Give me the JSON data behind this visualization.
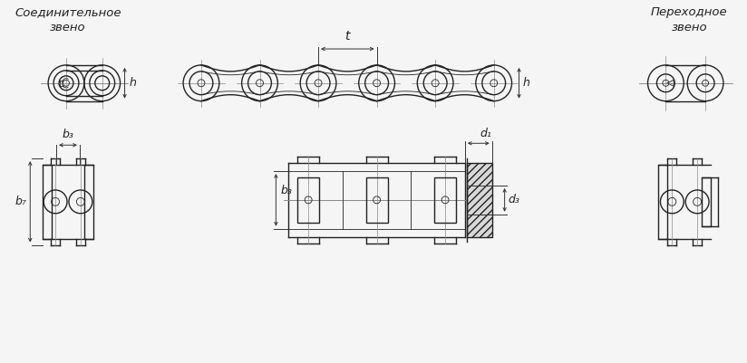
{
  "bg_color": "#f5f5f5",
  "line_color": "#222222",
  "dim_color": "#333333",
  "center_color": "#888888",
  "title_left": "Соединительное\nзвено",
  "title_right": "Переходное\nзвено",
  "label_t": "t",
  "label_h": "h",
  "label_b3": "b₃",
  "label_b7": "b₇",
  "label_d1": "d₁",
  "label_d3": "d₃",
  "figsize": [
    8.24,
    4.01
  ],
  "dpi": 100
}
